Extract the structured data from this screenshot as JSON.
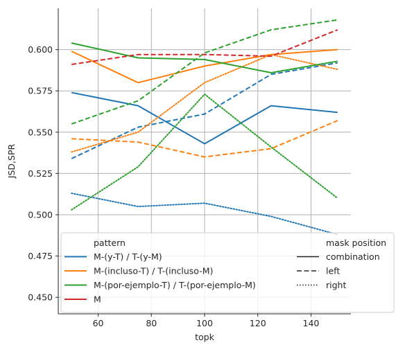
{
  "chart_data": {
    "type": "line",
    "xlabel": "topk",
    "ylabel": "JSD,SPR",
    "x": [
      50,
      75,
      100,
      125,
      150
    ],
    "xlim": [
      45,
      155
    ],
    "ylim": [
      0.44,
      0.625
    ],
    "xticks": [
      60,
      80,
      100,
      120,
      140
    ],
    "yticks": [
      0.45,
      0.475,
      0.5,
      0.525,
      0.55,
      0.575,
      0.6
    ],
    "ytick_labels": [
      "0.450",
      "0.475",
      "0.500",
      "0.525",
      "0.550",
      "0.575",
      "0.600"
    ],
    "grid": true,
    "legend_placement": "bottom-left",
    "legend": {
      "hue_title": "pattern",
      "hue_entries": [
        {
          "label": "M-(y-T) / T-(y-M)",
          "color": "#1f77b4"
        },
        {
          "label": "M-(incluso-T) / T-(incluso-M)",
          "color": "#ff7f0e"
        },
        {
          "label": "M-(por-ejemplo-T) / T-(por-ejemplo-M)",
          "color": "#2ca02c"
        },
        {
          "label": "M",
          "color": "#d62728"
        }
      ],
      "style_title": "mask position",
      "style_entries": [
        {
          "label": "combination",
          "dash": "solid"
        },
        {
          "label": "left",
          "dash": "dashed"
        },
        {
          "label": "right",
          "dash": "dotted"
        }
      ]
    },
    "series": [
      {
        "pattern": "M-(y-T) / T-(y-M)",
        "mask": "combination",
        "color": "#1f77b4",
        "dash": "solid",
        "values": [
          0.574,
          0.566,
          0.543,
          0.566,
          0.562
        ]
      },
      {
        "pattern": "M-(y-T) / T-(y-M)",
        "mask": "left",
        "color": "#1f77b4",
        "dash": "dashed",
        "values": [
          0.534,
          0.553,
          0.561,
          0.585,
          0.592
        ]
      },
      {
        "pattern": "M-(y-T) / T-(y-M)",
        "mask": "right",
        "color": "#1f77b4",
        "dash": "dotted",
        "values": [
          0.513,
          0.505,
          0.507,
          0.499,
          0.488
        ]
      },
      {
        "pattern": "M-(incluso-T) / T-(incluso-M)",
        "mask": "combination",
        "color": "#ff7f0e",
        "dash": "solid",
        "values": [
          0.599,
          0.58,
          0.59,
          0.597,
          0.6
        ]
      },
      {
        "pattern": "M-(incluso-T) / T-(incluso-M)",
        "mask": "left",
        "color": "#ff7f0e",
        "dash": "dashed",
        "values": [
          0.546,
          0.544,
          0.535,
          0.54,
          0.557
        ]
      },
      {
        "pattern": "M-(incluso-T) / T-(incluso-M)",
        "mask": "right",
        "color": "#ff7f0e",
        "dash": "dotted",
        "values": [
          0.538,
          0.55,
          0.58,
          0.597,
          0.588
        ]
      },
      {
        "pattern": "M-(por-ejemplo-T) / T-(por-ejemplo-M)",
        "mask": "combination",
        "color": "#2ca02c",
        "dash": "solid",
        "values": [
          0.604,
          0.595,
          0.594,
          0.586,
          0.593
        ]
      },
      {
        "pattern": "M-(por-ejemplo-T) / T-(por-ejemplo-M)",
        "mask": "left",
        "color": "#2ca02c",
        "dash": "dashed",
        "values": [
          0.555,
          0.569,
          0.598,
          0.612,
          0.618
        ]
      },
      {
        "pattern": "M-(por-ejemplo-T) / T-(por-ejemplo-M)",
        "mask": "right",
        "color": "#2ca02c",
        "dash": "dotted",
        "values": [
          0.503,
          0.529,
          0.573,
          0.541,
          0.51
        ]
      },
      {
        "pattern": "M",
        "mask": "left",
        "color": "#d62728",
        "dash": "dashed",
        "values": [
          0.591,
          0.597,
          0.597,
          0.596,
          0.612
        ]
      }
    ]
  }
}
